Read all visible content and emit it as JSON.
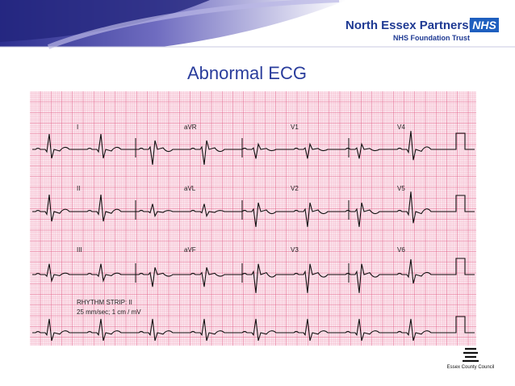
{
  "header": {
    "organisation": "North Essex Partnership",
    "badge": "NHS",
    "trust": "NHS Foundation Trust"
  },
  "title": "Abnormal ECG",
  "ecg": {
    "leads": [
      [
        "I",
        "aVR",
        "V1",
        "V4"
      ],
      [
        "II",
        "aVL",
        "V2",
        "V5"
      ],
      [
        "III",
        "aVF",
        "V3",
        "V6"
      ]
    ],
    "rhythm_label": "RHYTHM STRIP: II",
    "calibration": "25 mm/sec; 1 cm / mV"
  },
  "footer": {
    "council": "Essex County Council"
  }
}
